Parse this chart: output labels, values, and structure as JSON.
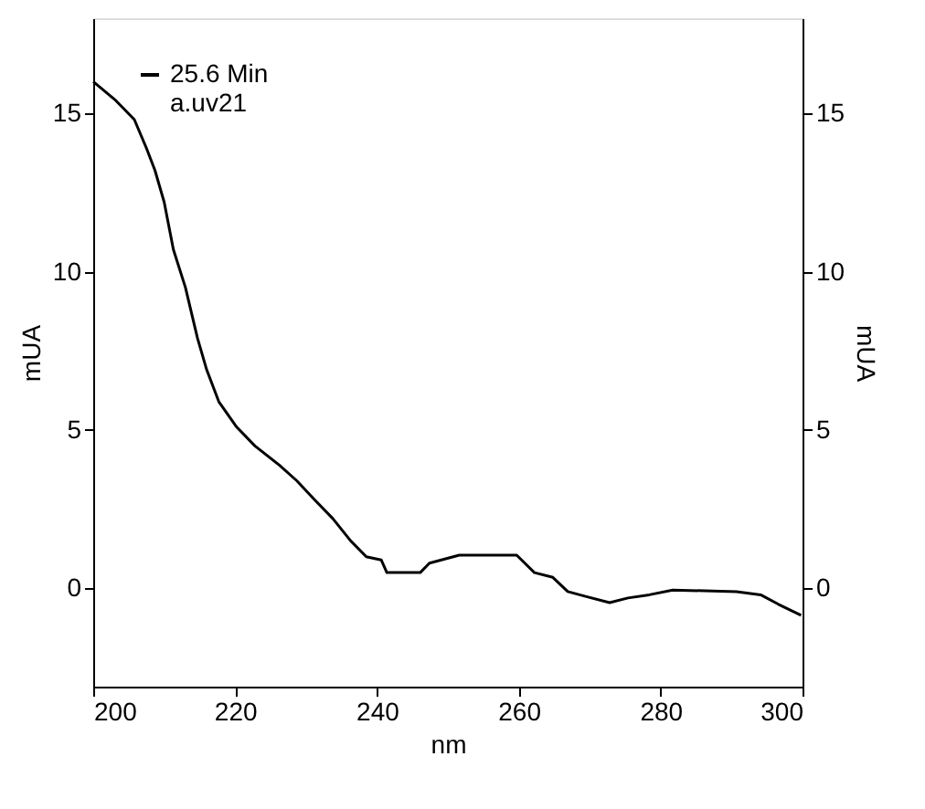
{
  "chart_data": {
    "type": "line",
    "xlabel": "nm",
    "ylabel": "mUA",
    "y2label": "mUA",
    "x": [
      200,
      203.2,
      205.8,
      207.5,
      208.7,
      210,
      211.3,
      213,
      214.7,
      216,
      217.7,
      220.2,
      222.8,
      226.2,
      228.7,
      231.2,
      233.8,
      236.3,
      238.5,
      240.6,
      241.4,
      246.1,
      247.4,
      251.6,
      259.7,
      262.2,
      264.8,
      266.9,
      269.4,
      272.8,
      275.4,
      278.4,
      281.7,
      290.7,
      294.1,
      296.6,
      299.8
    ],
    "series": [
      {
        "name": "25.6 Min\na.uv21",
        "color": "#000000",
        "values": [
          16.0,
          15.4,
          14.8,
          13.9,
          13.2,
          12.2,
          10.7,
          9.5,
          7.9,
          6.9,
          5.9,
          5.1,
          4.5,
          3.9,
          3.4,
          2.8,
          2.2,
          1.5,
          1.0,
          0.9,
          0.5,
          0.5,
          0.8,
          1.05,
          1.05,
          0.5,
          0.35,
          -0.1,
          -0.25,
          -0.45,
          -0.3,
          -0.2,
          -0.05,
          -0.1,
          -0.2,
          -0.5,
          -0.85
        ]
      }
    ],
    "xlim": [
      200,
      300
    ],
    "xticks": [
      200,
      220,
      240,
      260,
      280,
      300
    ],
    "ylim": [
      -3.1,
      18
    ],
    "yticks": [
      0,
      5,
      10,
      15
    ],
    "y2lim": [
      -3.1,
      18
    ],
    "y2ticks": [
      0,
      5,
      10,
      15
    ],
    "grid": false,
    "legend": "top left",
    "marker": "none",
    "line_style": "solid"
  }
}
